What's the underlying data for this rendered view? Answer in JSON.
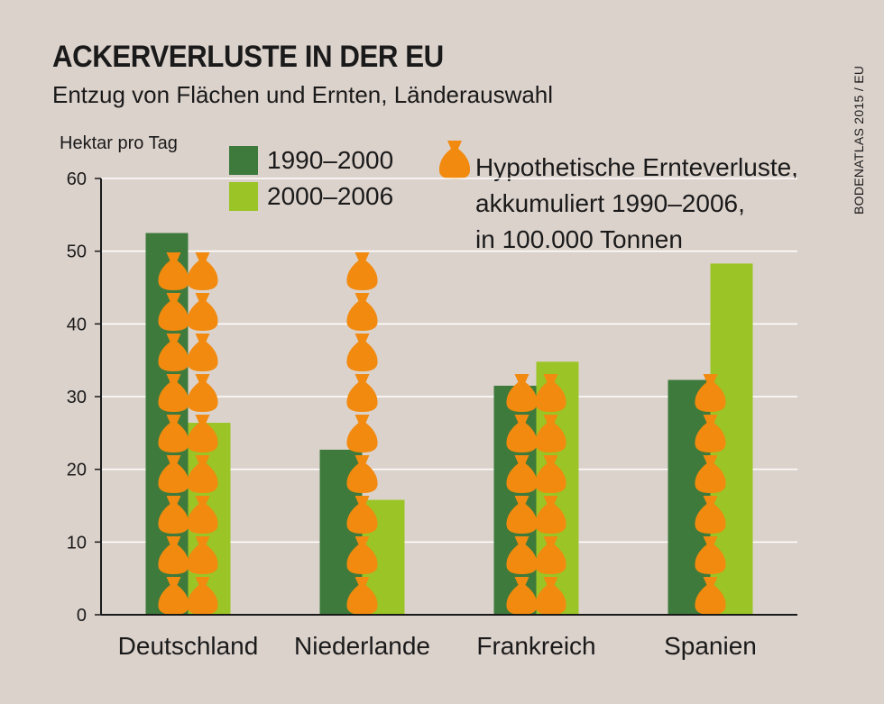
{
  "title": "ACKERVERLUSTE IN DER EU",
  "subtitle": "Entzug von Flächen und Ernten, Länderauswahl",
  "source": "BODENATLAS 2015 / EU",
  "colors": {
    "series1": "#3d7a3c",
    "series2": "#9bc426",
    "sack": "#f18a0e",
    "background": "#dcd2cc"
  },
  "legend": {
    "series1_label": "1990–2000",
    "series2_label": "2000–2006",
    "sack_lines": [
      "Hypothetische Ernteverluste,",
      "akkumuliert 1990–2006,",
      "in 100.000 Tonnen"
    ],
    "sack_icon": "sack-icon"
  },
  "chart_data": {
    "type": "bar",
    "ylabel": "Hektar pro Tag",
    "ylim": [
      0,
      60
    ],
    "yticks": [
      0,
      10,
      20,
      30,
      40,
      50,
      60
    ],
    "grid": true,
    "categories": [
      "Deutschland",
      "Niederlande",
      "Frankreich",
      "Spanien"
    ],
    "series": [
      {
        "name": "1990–2000",
        "values": [
          52.5,
          22.7,
          31.5,
          32.3
        ]
      },
      {
        "name": "2000–2006",
        "values": [
          26.4,
          15.8,
          34.8,
          48.3
        ]
      }
    ],
    "sacks": {
      "name": "Hypothetische Ernteverluste, akkumuliert 1990–2006, in 100.000 Tonnen",
      "values": [
        17.5,
        9,
        12,
        6
      ]
    }
  }
}
